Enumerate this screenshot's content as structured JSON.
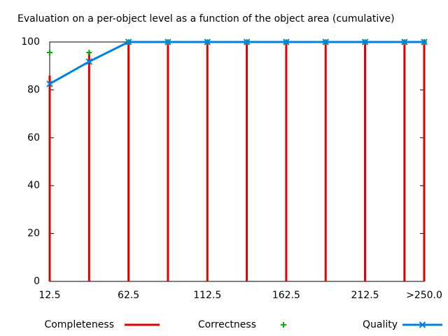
{
  "chart_data": {
    "type": "line",
    "title": "Evaluation on a per-object level as a function of the object area (cumulative)",
    "x": [
      12.5,
      37.5,
      62.5,
      87.5,
      112.5,
      137.5,
      162.5,
      187.5,
      212.5,
      237.5,
      250
    ],
    "series": [
      {
        "name": "Completeness",
        "color": "#e00000",
        "style": "impulses",
        "values": [
          86,
          96,
          100,
          100,
          100,
          100,
          100,
          100,
          100,
          100,
          100
        ]
      },
      {
        "name": "Correctness",
        "color": "#00b000",
        "style": "points",
        "values": [
          95.6,
          95.6,
          100,
          100,
          100,
          100,
          100,
          100,
          100,
          100,
          100
        ]
      },
      {
        "name": "Quality",
        "color": "#0080e0",
        "style": "linespoints",
        "values": [
          82.5,
          91.8,
          100,
          100,
          100,
          100,
          100,
          100,
          100,
          100,
          100
        ]
      }
    ],
    "xlim": [
      12.5,
      250
    ],
    "ylim": [
      0,
      100
    ],
    "xticks": [
      12.5,
      62.5,
      112.5,
      162.5,
      212.5,
      {
        "value": 250,
        "label": ">250.0"
      }
    ],
    "yticks": [
      0,
      20,
      40,
      60,
      80,
      100
    ],
    "grid": false
  }
}
